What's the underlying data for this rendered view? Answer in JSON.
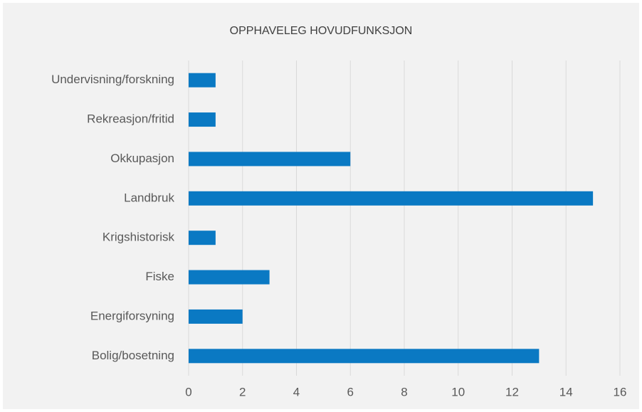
{
  "chart_data": {
    "type": "bar",
    "orientation": "horizontal",
    "title": "OPPHAVELEG HOVUDFUNKSJON",
    "categories": [
      "Undervisning/forskning",
      "Rekreasjon/fritid",
      "Okkupasjon",
      "Landbruk",
      "Krigshistorisk",
      "Fiske",
      "Energiforsyning",
      "Bolig/bosetning"
    ],
    "values": [
      1,
      1,
      6,
      15,
      1,
      3,
      2,
      13
    ],
    "color": "#0a79c3",
    "xlim": [
      0,
      16
    ],
    "xticks": [
      0,
      2,
      4,
      6,
      8,
      10,
      12,
      14,
      16
    ],
    "grid": true
  }
}
